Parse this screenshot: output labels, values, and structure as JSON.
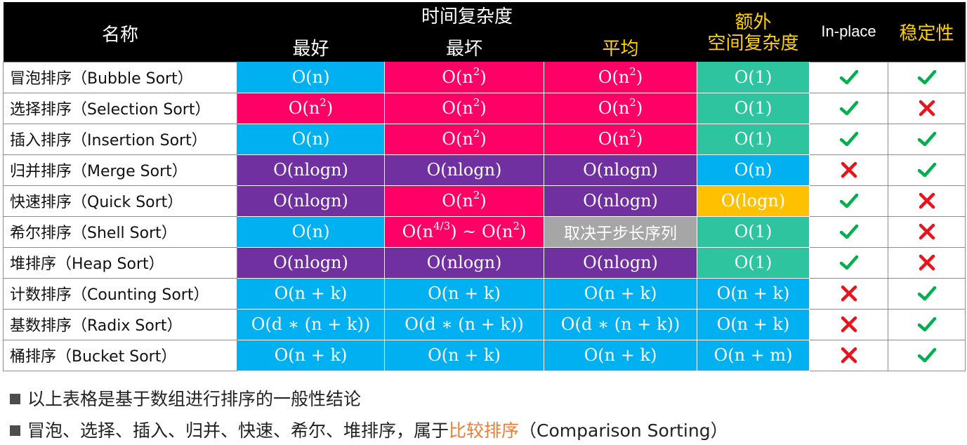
{
  "header": {
    "name": "名称",
    "time_complexity": "时间复杂度",
    "best": "最好",
    "worst": "最坏",
    "average": "平均",
    "extra_space_line1": "额外",
    "extra_space_line2": "空间复杂度",
    "in_place": "In-place",
    "stable": "稳定性"
  },
  "colors": {
    "blue": "#00b0f0",
    "pink": "#ff0066",
    "purple": "#7030a0",
    "teal": "#2ec4a0",
    "orange": "#ffc000",
    "gray": "#a6a6a6",
    "check": "#00b050",
    "cross": "#e8141c",
    "highlight": "#ed7d31"
  },
  "rows": [
    {
      "name": "冒泡排序（Bubble Sort）",
      "best": {
        "base": "O(n",
        "sup": "",
        "end": ")",
        "color": "blue"
      },
      "worst": {
        "base": "O(n",
        "sup": "2",
        "end": ")",
        "color": "pink"
      },
      "avg": {
        "base": "O(n",
        "sup": "2",
        "end": ")",
        "color": "pink"
      },
      "space": {
        "text": "O(1)",
        "color": "teal"
      },
      "in_place": "check",
      "stable": "check"
    },
    {
      "name": "选择排序（Selection Sort）",
      "best": {
        "base": "O(n",
        "sup": "2",
        "end": ")",
        "color": "pink"
      },
      "worst": {
        "base": "O(n",
        "sup": "2",
        "end": ")",
        "color": "pink"
      },
      "avg": {
        "base": "O(n",
        "sup": "2",
        "end": ")",
        "color": "pink"
      },
      "space": {
        "text": "O(1)",
        "color": "teal"
      },
      "in_place": "check",
      "stable": "cross"
    },
    {
      "name": "插入排序（Insertion Sort）",
      "best": {
        "base": "O(n",
        "sup": "",
        "end": ")",
        "color": "blue"
      },
      "worst": {
        "base": "O(n",
        "sup": "2",
        "end": ")",
        "color": "pink"
      },
      "avg": {
        "base": "O(n",
        "sup": "2",
        "end": ")",
        "color": "pink"
      },
      "space": {
        "text": "O(1)",
        "color": "teal"
      },
      "in_place": "check",
      "stable": "check"
    },
    {
      "name": "归并排序（Merge Sort）",
      "best": {
        "base": "O(nlogn",
        "sup": "",
        "end": ")",
        "color": "purple"
      },
      "worst": {
        "base": "O(nlogn",
        "sup": "",
        "end": ")",
        "color": "purple"
      },
      "avg": {
        "base": "O(nlogn",
        "sup": "",
        "end": ")",
        "color": "purple"
      },
      "space": {
        "text": "O(n)",
        "color": "blue"
      },
      "in_place": "cross",
      "stable": "check"
    },
    {
      "name": "快速排序（Quick Sort）",
      "best": {
        "base": "O(nlogn",
        "sup": "",
        "end": ")",
        "color": "purple"
      },
      "worst": {
        "base": "O(n",
        "sup": "2",
        "end": ")",
        "color": "pink"
      },
      "avg": {
        "base": "O(nlogn",
        "sup": "",
        "end": ")",
        "color": "purple"
      },
      "space": {
        "text": "O(logn)",
        "color": "orange"
      },
      "in_place": "check",
      "stable": "cross"
    },
    {
      "name": "希尔排序（Shell Sort）",
      "best": {
        "base": "O(n",
        "sup": "",
        "end": ")",
        "color": "blue"
      },
      "worst": {
        "base": "O(n",
        "sup": "4/3",
        "end": ") ~ O(n",
        "sup2": "2",
        "end2": ")",
        "color": "pink"
      },
      "avg": {
        "text": "取决于步长序列",
        "color": "gray"
      },
      "space": {
        "text": "O(1)",
        "color": "teal"
      },
      "in_place": "check",
      "stable": "cross"
    },
    {
      "name": "堆排序（Heap Sort）",
      "best": {
        "base": "O(nlogn",
        "sup": "",
        "end": ")",
        "color": "purple"
      },
      "worst": {
        "base": "O(nlogn",
        "sup": "",
        "end": ")",
        "color": "purple"
      },
      "avg": {
        "base": "O(nlogn",
        "sup": "",
        "end": ")",
        "color": "purple"
      },
      "space": {
        "text": "O(1)",
        "color": "teal"
      },
      "in_place": "check",
      "stable": "cross"
    },
    {
      "name": "计数排序（Counting Sort）",
      "best": {
        "base": "O(n + k",
        "sup": "",
        "end": ")",
        "color": "blue"
      },
      "worst": {
        "base": "O(n + k",
        "sup": "",
        "end": ")",
        "color": "blue"
      },
      "avg": {
        "base": "O(n + k",
        "sup": "",
        "end": ")",
        "color": "blue"
      },
      "space": {
        "text": "O(n + k)",
        "color": "blue"
      },
      "in_place": "cross",
      "stable": "check"
    },
    {
      "name": "基数排序（Radix Sort）",
      "best": {
        "base": "O(d ∗ (n + k)",
        "sup": "",
        "end": ")",
        "color": "blue"
      },
      "worst": {
        "base": "O(d ∗ (n + k)",
        "sup": "",
        "end": ")",
        "color": "blue"
      },
      "avg": {
        "base": "O(d ∗ (n + k)",
        "sup": "",
        "end": ")",
        "color": "blue"
      },
      "space": {
        "text": "O(n + k)",
        "color": "blue"
      },
      "in_place": "cross",
      "stable": "check"
    },
    {
      "name": "桶排序（Bucket Sort）",
      "best": {
        "base": "O(n + k",
        "sup": "",
        "end": ")",
        "color": "blue"
      },
      "worst": {
        "base": "O(n + k",
        "sup": "",
        "end": ")",
        "color": "blue"
      },
      "avg": {
        "base": "O(n + k",
        "sup": "",
        "end": ")",
        "color": "blue"
      },
      "space": {
        "text": "O(n + m)",
        "color": "blue"
      },
      "in_place": "cross",
      "stable": "check"
    }
  ],
  "notes": {
    "line1": "以上表格是基于数组进行排序的一般性结论",
    "line2_prefix": "冒泡、选择、插入、归并、快速、希尔、堆排序，属于",
    "line2_highlight": "比较排序",
    "line2_suffix": "（Comparison Sorting）"
  }
}
